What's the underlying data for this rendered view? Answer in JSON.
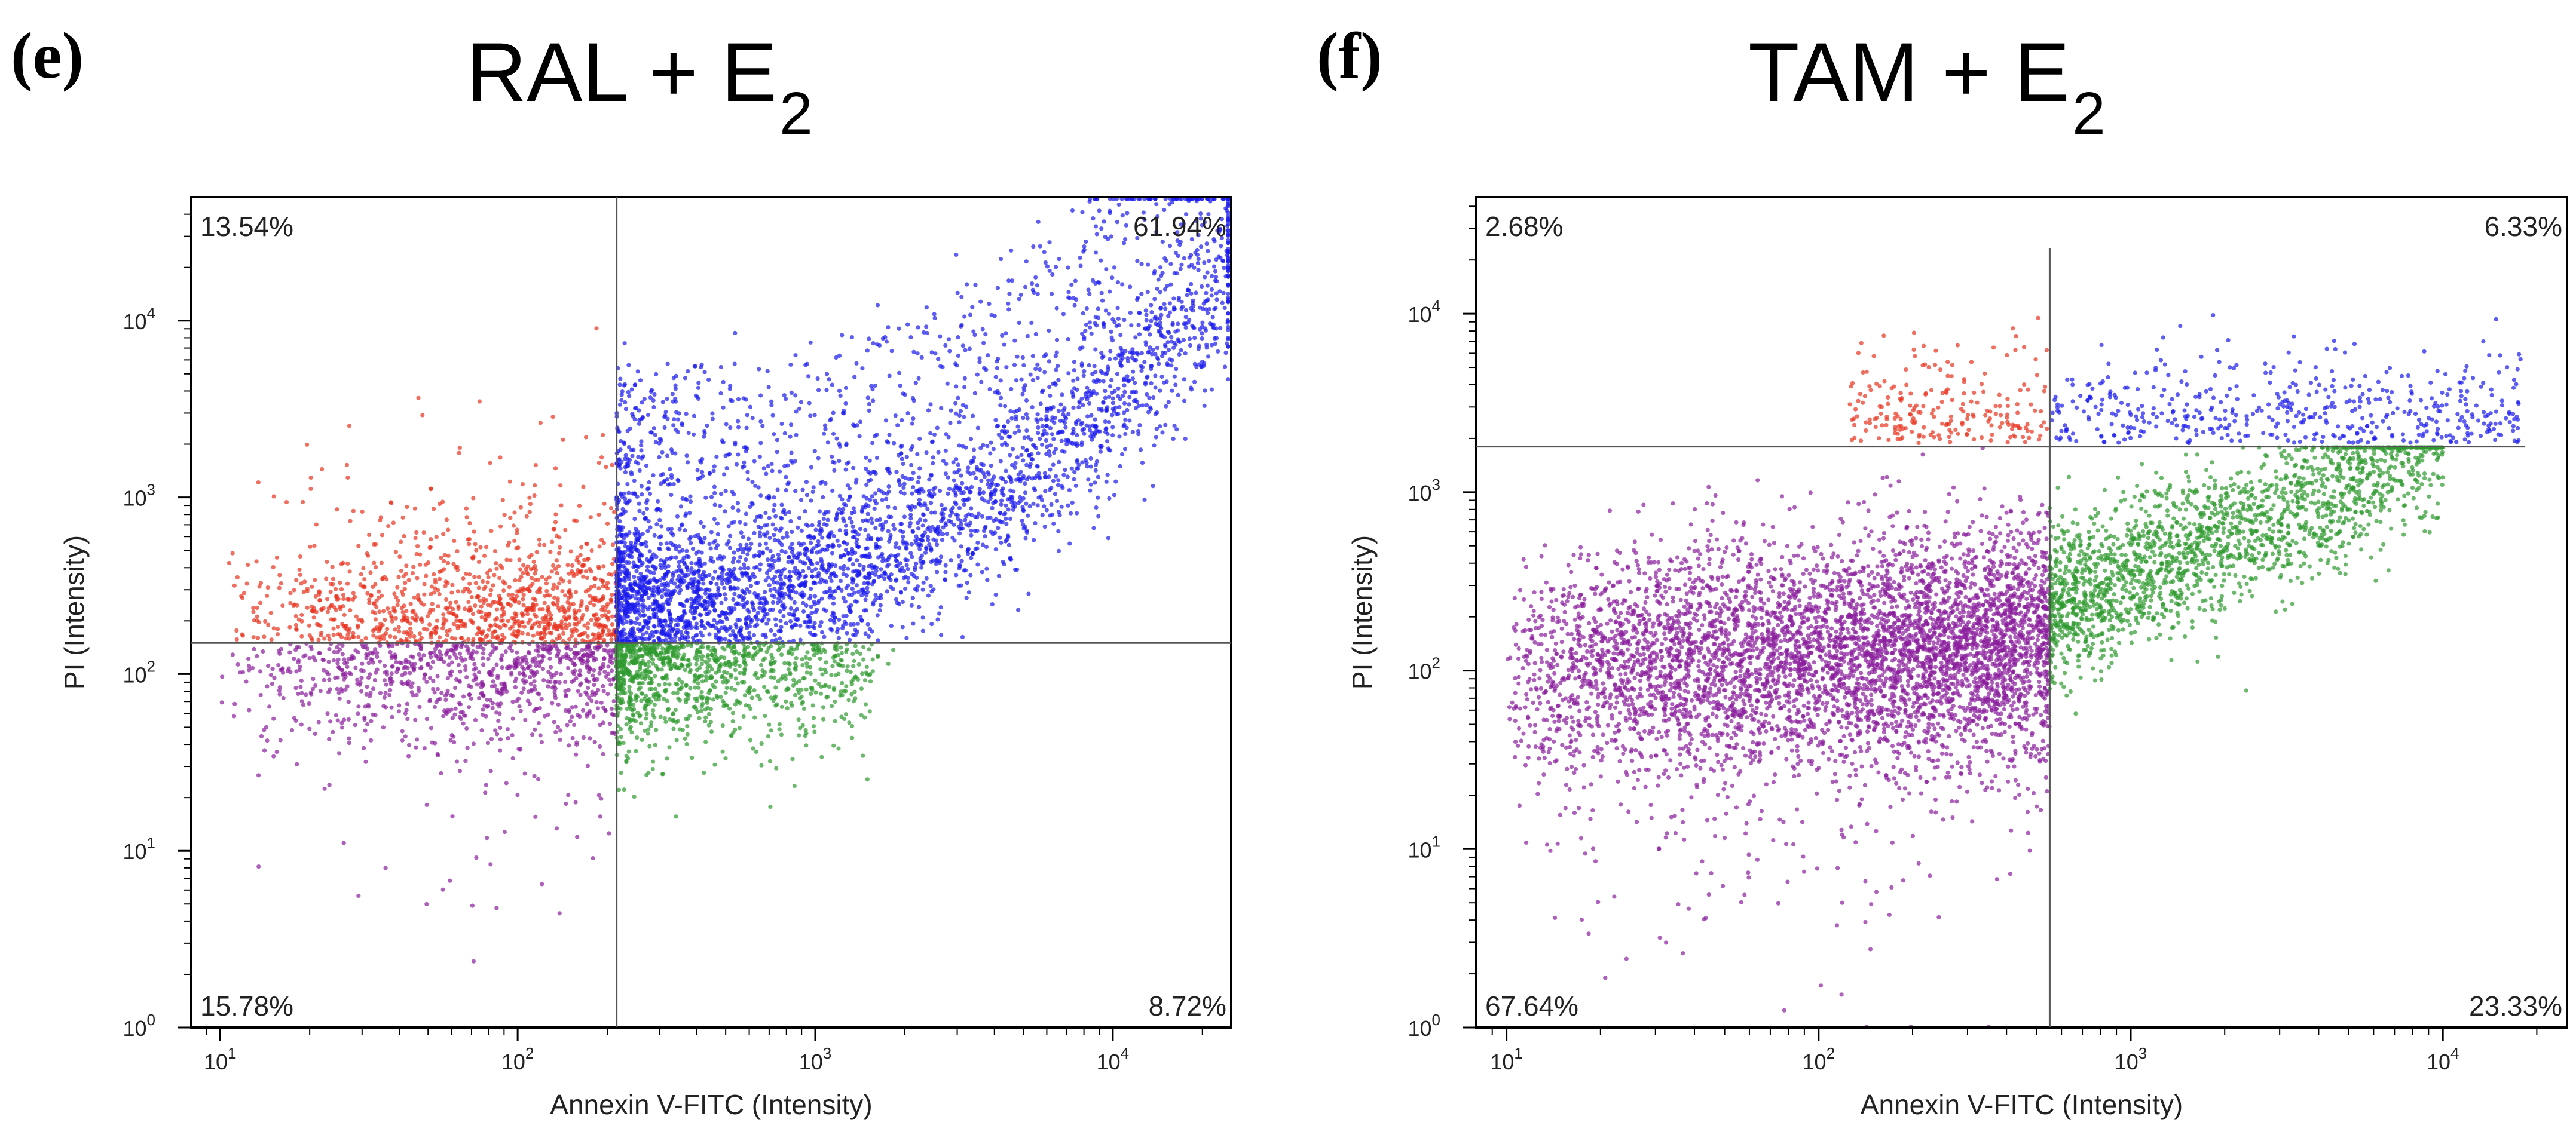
{
  "panels": [
    {
      "letter": "(e)",
      "title_main": "RAL + E",
      "title_sub": "2"
    },
    {
      "letter": "(f)",
      "title_main": "TAM + E",
      "title_sub": "2"
    }
  ],
  "chart_data": [
    {
      "type": "scatter",
      "title": "RAL + E2",
      "xlabel": "Annexin V-FITC (Intensity)",
      "ylabel": "PI (Intensity)",
      "x_scale": "log",
      "y_scale": "log",
      "xlim": [
        8,
        25000
      ],
      "ylim": [
        1,
        50000
      ],
      "x_ticks": [
        {
          "value": 10,
          "label": "10",
          "exp": "1"
        },
        {
          "value": 100,
          "label": "10",
          "exp": "2"
        },
        {
          "value": 1000,
          "label": "10",
          "exp": "3"
        },
        {
          "value": 10000,
          "label": "10",
          "exp": "4"
        }
      ],
      "y_ticks": [
        {
          "value": 1,
          "label": "10",
          "exp": "0"
        },
        {
          "value": 10,
          "label": "10",
          "exp": "1"
        },
        {
          "value": 100,
          "label": "10",
          "exp": "2"
        },
        {
          "value": 1000,
          "label": "10",
          "exp": "3"
        },
        {
          "value": 10000,
          "label": "10",
          "exp": "4"
        }
      ],
      "gate_x": 215,
      "gate_y": 150,
      "quadrants": {
        "upper_left": "13.54%",
        "upper_right": "61.94%",
        "lower_left": "15.78%",
        "lower_right": "8.72%"
      },
      "quadrant_colors": {
        "upper_left": "#e8321e",
        "upper_right": "#1a1aee",
        "lower_left": "#8a1e9c",
        "lower_right": "#2e9a2e"
      },
      "grid": false
    },
    {
      "type": "scatter",
      "title": "TAM + E2",
      "xlabel": "Annexin V-FITC (Intensity)",
      "ylabel": "PI (Intensity)",
      "x_scale": "log",
      "y_scale": "log",
      "xlim": [
        8,
        25000
      ],
      "ylim": [
        1,
        45000
      ],
      "x_ticks": [
        {
          "value": 10,
          "label": "10",
          "exp": "1"
        },
        {
          "value": 100,
          "label": "10",
          "exp": "2"
        },
        {
          "value": 1000,
          "label": "10",
          "exp": "3"
        },
        {
          "value": 10000,
          "label": "10",
          "exp": "4"
        }
      ],
      "y_ticks": [
        {
          "value": 1,
          "label": "10",
          "exp": "0"
        },
        {
          "value": 10,
          "label": "10",
          "exp": "1"
        },
        {
          "value": 100,
          "label": "10",
          "exp": "2"
        },
        {
          "value": 1000,
          "label": "10",
          "exp": "3"
        },
        {
          "value": 10000,
          "label": "10",
          "exp": "4"
        }
      ],
      "gate_x": 550,
      "gate_y": 1800,
      "quadrants": {
        "upper_left": "2.68%",
        "upper_right": "6.33%",
        "lower_left": "67.64%",
        "lower_right": "23.33%"
      },
      "quadrant_colors": {
        "upper_left": "#e8321e",
        "upper_right": "#1a1aee",
        "lower_left": "#8a1e9c",
        "lower_right": "#2e9a2e"
      },
      "grid": false
    }
  ]
}
